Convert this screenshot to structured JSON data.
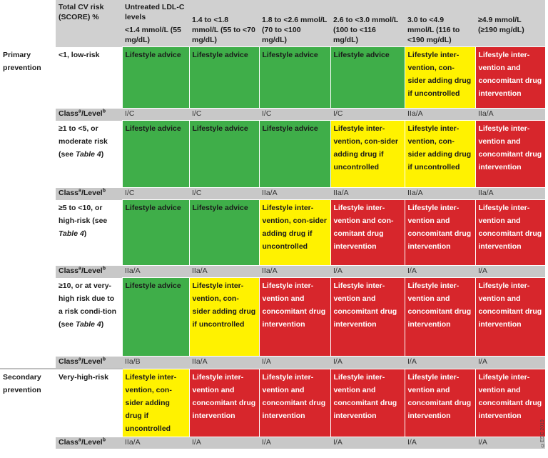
{
  "header": {
    "risk_col": "Total CV risk (SCORE) %",
    "group": "Untreated LDL-C levels",
    "cols": [
      "<1.4 mmol/L (55 mg/dL)",
      "1.4 to <1.8 mmol/L (55 to <70 mg/dL)",
      "1.8 to <2.6 mmol/L (70 to <100 mg/dL)",
      "2.6 to <3.0 mmol/L (100 to <116 mg/dL)",
      "3.0 to <4.9 mmol/L (116 to <190 mg/dL)",
      "≥4.9 mmol/L (≥190 mg/dL)"
    ]
  },
  "class_label": "Class",
  "class_sup_a": "a",
  "level_label": "/Level",
  "class_sup_b": "b",
  "sections": {
    "primary": "Primary prevention",
    "secondary": "Secondary prevention"
  },
  "rows": [
    {
      "risk": "<1, low-risk",
      "cells": [
        {
          "text": "Lifestyle advice",
          "color": "green"
        },
        {
          "text": "Lifestyle advice",
          "color": "green"
        },
        {
          "text": "Lifestyle advice",
          "color": "green"
        },
        {
          "text": "Lifestyle advice",
          "color": "green"
        },
        {
          "text": "Lifestyle inter-vention, con-sider adding drug if uncontrolled",
          "color": "yellow"
        },
        {
          "text": "Lifestyle inter-vention and concomitant drug intervention",
          "color": "red"
        }
      ],
      "classes": [
        "I/C",
        "I/C",
        "I/C",
        "I/C",
        "IIa/A",
        "IIa/A"
      ]
    },
    {
      "risk": "≥1 to <5, or moderate risk (see",
      "risk_ref": "Table 4",
      "risk_end": ")",
      "cells": [
        {
          "text": "Lifestyle advice",
          "color": "green"
        },
        {
          "text": "Lifestyle advice",
          "color": "green"
        },
        {
          "text": "Lifestyle advice",
          "color": "green"
        },
        {
          "text": "Lifestyle inter-vention, con-sider adding drug if uncontrolled",
          "color": "yellow"
        },
        {
          "text": "Lifestyle inter-vention, con-sider adding drug if uncontrolled",
          "color": "yellow"
        },
        {
          "text": "Lifestyle inter-vention and concomitant drug intervention",
          "color": "red"
        }
      ],
      "classes": [
        "I/C",
        "I/C",
        "IIa/A",
        "IIa/A",
        "IIa/A",
        "IIa/A"
      ]
    },
    {
      "risk": "≥5 to <10, or high-risk (see",
      "risk_ref": "Table 4",
      "risk_end": ")",
      "cells": [
        {
          "text": "Lifestyle advice",
          "color": "green"
        },
        {
          "text": "Lifestyle advice",
          "color": "green"
        },
        {
          "text": "Lifestyle inter-vention, con-sider adding drug if uncontrolled",
          "color": "yellow"
        },
        {
          "text": "Lifestyle inter-vention and con-comitant drug intervention",
          "color": "red"
        },
        {
          "text": "Lifestyle inter-vention and concomitant drug intervention",
          "color": "red"
        },
        {
          "text": "Lifestyle inter-vention and concomitant drug intervention",
          "color": "red"
        }
      ],
      "classes": [
        "IIa/A",
        "IIa/A",
        "IIa/A",
        "I/A",
        "I/A",
        "I/A"
      ]
    },
    {
      "risk": "≥10, or at very-high risk due to a risk condi-tion (see",
      "risk_ref": "Table 4",
      "risk_end": ")",
      "cells": [
        {
          "text": "Lifestyle advice",
          "color": "green"
        },
        {
          "text": "Lifestyle inter-vention, con-sider adding drug if uncontrolled",
          "color": "yellow"
        },
        {
          "text": "Lifestyle inter-vention and concomitant drug intervention",
          "color": "red"
        },
        {
          "text": "Lifestyle inter-vention and concomitant drug intervention",
          "color": "red"
        },
        {
          "text": "Lifestyle inter-vention and concomitant drug intervention",
          "color": "red"
        },
        {
          "text": "Lifestyle inter-vention and concomitant drug intervention",
          "color": "red"
        }
      ],
      "classes": [
        "IIa/B",
        "IIa/A",
        "I/A",
        "I/A",
        "I/A",
        "I/A"
      ]
    },
    {
      "risk": "Very-high-risk",
      "cells": [
        {
          "text": "Lifestyle inter-vention, con-sider adding drug if uncontrolled",
          "color": "yellow"
        },
        {
          "text": "Lifestyle inter-vention and concomitant drug intervention",
          "color": "red"
        },
        {
          "text": "Lifestyle inter-vention and concomitant drug intervention",
          "color": "red"
        },
        {
          "text": "Lifestyle inter-vention and concomitant drug intervention",
          "color": "red"
        },
        {
          "text": "Lifestyle inter-vention and concomitant drug intervention",
          "color": "red"
        },
        {
          "text": "Lifestyle inter-vention and concomitant drug intervention",
          "color": "red"
        }
      ],
      "classes": [
        "IIa/A",
        "I/A",
        "I/A",
        "I/A",
        "I/A",
        "I/A"
      ]
    }
  ],
  "colors": {
    "green": "#3fae49",
    "yellow": "#fff200",
    "red": "#d7262c",
    "header_gray": "#d0d0d0"
  },
  "copyright": "©ESC 2019"
}
